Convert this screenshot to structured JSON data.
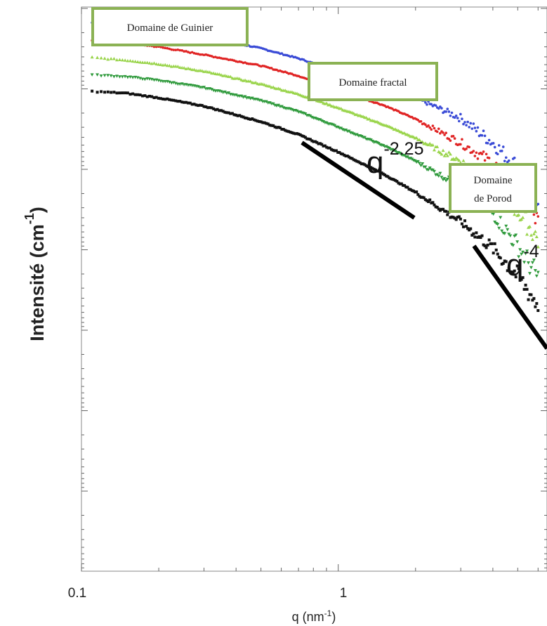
{
  "chart_data": {
    "type": "scatter",
    "title": "",
    "xlabel": "q (nm",
    "xlabel_sup": "-1",
    "xlabel_close": ")",
    "ylabel": "Intensité (cm",
    "ylabel_sup": "-1",
    "ylabel_close": ")",
    "xscale": "log",
    "yscale": "log",
    "xlim": [
      0.1,
      6.5
    ],
    "ylim_decades": 6.15,
    "grid": false,
    "x_tick_labels": [
      "0.1",
      "1"
    ],
    "y_tick_labels": [],
    "series": [
      {
        "color": "#3a4bd6",
        "marker": "circle",
        "points": [
          [
            0.11,
            0.38
          ],
          [
            0.15,
            0.345
          ],
          [
            0.2,
            0.305
          ],
          [
            0.3,
            0.225
          ],
          [
            0.5,
            0.1
          ],
          [
            0.7,
            -0.01
          ],
          [
            1.0,
            -0.15
          ],
          [
            1.5,
            -0.32
          ],
          [
            2.0,
            -0.44
          ],
          [
            3.0,
            -0.66
          ],
          [
            4.0,
            -0.93
          ],
          [
            5.0,
            -1.2
          ],
          [
            6.0,
            -1.52
          ]
        ]
      },
      {
        "color": "#e02424",
        "marker": "circle",
        "points": [
          [
            0.11,
            0.19
          ],
          [
            0.15,
            0.16
          ],
          [
            0.2,
            0.115
          ],
          [
            0.3,
            0.03
          ],
          [
            0.5,
            -0.09
          ],
          [
            0.7,
            -0.2
          ],
          [
            1.0,
            -0.36
          ],
          [
            1.5,
            -0.52
          ],
          [
            2.0,
            -0.67
          ],
          [
            3.0,
            -0.93
          ],
          [
            4.0,
            -1.15
          ],
          [
            5.0,
            -1.45
          ],
          [
            6.0,
            -1.8
          ]
        ]
      },
      {
        "color": "#99d44a",
        "marker": "triangle-up",
        "points": [
          [
            0.11,
            0.0
          ],
          [
            0.15,
            -0.03
          ],
          [
            0.2,
            -0.07
          ],
          [
            0.3,
            -0.15
          ],
          [
            0.5,
            -0.29
          ],
          [
            0.7,
            -0.4
          ],
          [
            1.0,
            -0.55
          ],
          [
            1.5,
            -0.73
          ],
          [
            2.0,
            -0.88
          ],
          [
            3.0,
            -1.13
          ],
          [
            4.0,
            -1.37
          ],
          [
            5.0,
            -1.67
          ],
          [
            6.0,
            -1.98
          ]
        ]
      },
      {
        "color": "#2f9a3c",
        "marker": "triangle-down",
        "points": [
          [
            0.11,
            -0.19
          ],
          [
            0.15,
            -0.21
          ],
          [
            0.2,
            -0.25
          ],
          [
            0.3,
            -0.33
          ],
          [
            0.5,
            -0.47
          ],
          [
            0.7,
            -0.59
          ],
          [
            1.0,
            -0.76
          ],
          [
            1.5,
            -0.96
          ],
          [
            2.0,
            -1.13
          ],
          [
            3.0,
            -1.41
          ],
          [
            4.0,
            -1.7
          ],
          [
            5.0,
            -2.05
          ],
          [
            6.0,
            -2.4
          ]
        ]
      },
      {
        "color": "#111111",
        "marker": "square",
        "points": [
          [
            0.11,
            -0.37
          ],
          [
            0.15,
            -0.39
          ],
          [
            0.2,
            -0.44
          ],
          [
            0.3,
            -0.53
          ],
          [
            0.5,
            -0.7
          ],
          [
            0.7,
            -0.84
          ],
          [
            1.0,
            -1.03
          ],
          [
            1.5,
            -1.27
          ],
          [
            2.0,
            -1.47
          ],
          [
            3.0,
            -1.79
          ],
          [
            4.0,
            -2.08
          ],
          [
            5.0,
            -2.38
          ],
          [
            6.0,
            -2.7
          ]
        ]
      }
    ],
    "slope_lines": [
      {
        "label_base": "q",
        "label_exp": "-2.25"
      },
      {
        "label_base": "q",
        "label_exp": "-4"
      }
    ],
    "annotations": [
      {
        "lines": [
          "Domaine de Guinier"
        ],
        "border_color": "#8bb254"
      },
      {
        "lines": [
          "Domaine fractal"
        ],
        "border_color": "#8bb254"
      },
      {
        "lines": [
          "Domaine",
          "de Porod"
        ],
        "border_color": "#8bb254"
      }
    ]
  }
}
